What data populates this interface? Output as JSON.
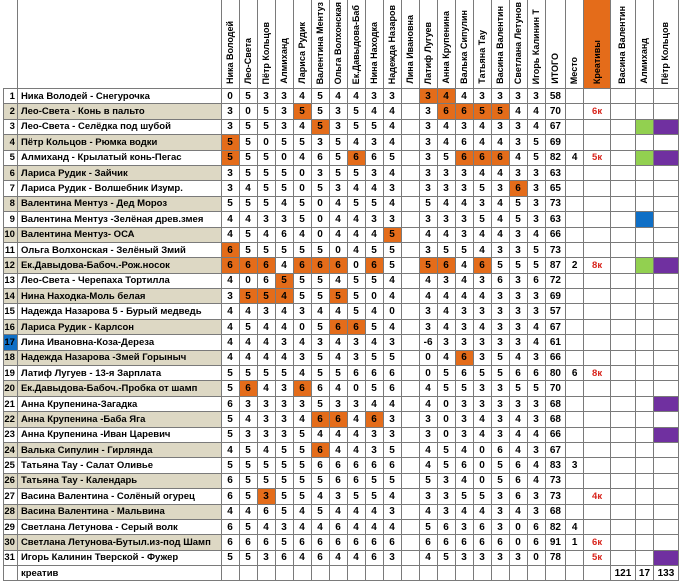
{
  "headers": {
    "judges": [
      "Ника Володей",
      "Лео-Света",
      "Пётр Кольцов",
      "Алмиханд",
      "Лариса Рудик",
      "Валентина Ментуз",
      "Ольга Волхонская",
      "Ек.Давыдова-Баб",
      "Нина Находка",
      "Надежда Назаров",
      "Лина Ивановна",
      "Латиф Лугуев",
      "Анна Крупенина",
      "Валька Сипулин",
      "Татьяна Тау",
      "Васина Валентин",
      "Светлана Летунов",
      "Игорь Калинин Т"
    ],
    "total": "ИТОГО",
    "place": "Место",
    "creative": "Креативы",
    "extra": [
      "Васина Валентин",
      "Алмиханд",
      "Пётр Кольцов"
    ]
  },
  "rows": [
    {
      "n": "1",
      "name": "Ника Володей - Снегурочка",
      "scores": [
        "0",
        "5",
        "3",
        "3",
        "4",
        "5",
        "4",
        "4",
        "3",
        "3",
        "",
        "3",
        "4",
        "4",
        "3",
        "3",
        "3",
        "3"
      ],
      "hl": [
        11,
        12
      ],
      "total": "58",
      "place": "",
      "note": "",
      "marks": [
        "",
        "",
        ""
      ],
      "beige": false
    },
    {
      "n": "2",
      "name": "Лео-Света - Конь в пальто",
      "scores": [
        "3",
        "0",
        "5",
        "3",
        "5",
        "5",
        "3",
        "5",
        "4",
        "4",
        "",
        "3",
        "6",
        "6",
        "5",
        "5",
        "4",
        "4"
      ],
      "hl": [
        4,
        12,
        13,
        14,
        15
      ],
      "total": "70",
      "place": "",
      "note": "6к",
      "marks": [
        "",
        "",
        ""
      ],
      "beige": true
    },
    {
      "n": "3",
      "name": "Лео-Света - Селёдка под шубой",
      "scores": [
        "3",
        "5",
        "5",
        "3",
        "4",
        "5",
        "3",
        "5",
        "5",
        "4",
        "",
        "3",
        "4",
        "3",
        "4",
        "3",
        "3",
        "4"
      ],
      "hl": [
        5
      ],
      "total": "67",
      "place": "",
      "note": "",
      "marks": [
        "",
        "green",
        "purple"
      ],
      "beige": false
    },
    {
      "n": "4",
      "name": "Пётр Кольцов - Рюмка водки",
      "scores": [
        "5",
        "5",
        "0",
        "5",
        "5",
        "3",
        "5",
        "4",
        "3",
        "4",
        "",
        "3",
        "4",
        "6",
        "4",
        "4",
        "3",
        "5"
      ],
      "hl": [
        0
      ],
      "total": "69",
      "place": "",
      "note": "",
      "marks": [
        "",
        "",
        ""
      ],
      "beige": true
    },
    {
      "n": "5",
      "name": "Алмиханд - Крылатый конь-Пегас",
      "scores": [
        "5",
        "5",
        "5",
        "0",
        "4",
        "6",
        "5",
        "6",
        "6",
        "5",
        "",
        "3",
        "5",
        "6",
        "6",
        "6",
        "4",
        "5"
      ],
      "hl": [
        0,
        7,
        13,
        14,
        15
      ],
      "total": "82",
      "place": "4",
      "note": "5к",
      "marks": [
        "",
        "green",
        "purple"
      ],
      "beige": false
    },
    {
      "n": "6",
      "name": "Лариса Рудик - Зайчик",
      "scores": [
        "3",
        "5",
        "5",
        "5",
        "0",
        "3",
        "5",
        "5",
        "3",
        "4",
        "",
        "3",
        "3",
        "3",
        "4",
        "4",
        "3",
        "3"
      ],
      "hl": [],
      "total": "63",
      "place": "",
      "note": "",
      "marks": [
        "",
        "",
        ""
      ],
      "beige": true
    },
    {
      "n": "7",
      "name": "Лариса Рудик - Волшебник Изумр.",
      "scores": [
        "3",
        "4",
        "5",
        "5",
        "0",
        "5",
        "3",
        "4",
        "4",
        "3",
        "",
        "3",
        "3",
        "3",
        "5",
        "3",
        "6",
        "3"
      ],
      "hl": [
        16
      ],
      "total": "65",
      "place": "",
      "note": "",
      "marks": [
        "",
        "",
        ""
      ],
      "beige": false
    },
    {
      "n": "8",
      "name": "Валентина Ментуз - Дед Мороз",
      "scores": [
        "5",
        "5",
        "5",
        "4",
        "5",
        "0",
        "4",
        "5",
        "5",
        "4",
        "",
        "5",
        "4",
        "4",
        "3",
        "4",
        "5",
        "3"
      ],
      "hl": [],
      "total": "73",
      "place": "",
      "note": "",
      "marks": [
        "",
        "",
        ""
      ],
      "beige": true
    },
    {
      "n": "9",
      "name": "Валентина Ментуз -Зелёная древ.змея",
      "scores": [
        "4",
        "4",
        "3",
        "3",
        "5",
        "0",
        "4",
        "4",
        "3",
        "3",
        "",
        "3",
        "3",
        "3",
        "5",
        "4",
        "5",
        "3"
      ],
      "hl": [],
      "total": "63",
      "place": "",
      "note": "",
      "marks": [
        "",
        "blue",
        ""
      ],
      "beige": false
    },
    {
      "n": "10",
      "name": "Валентина Ментуз- ОСА",
      "scores": [
        "4",
        "5",
        "4",
        "6",
        "4",
        "0",
        "4",
        "4",
        "4",
        "5",
        "",
        "4",
        "4",
        "3",
        "4",
        "4",
        "3",
        "4"
      ],
      "hl": [
        9
      ],
      "total": "66",
      "place": "",
      "note": "",
      "marks": [
        "",
        "",
        ""
      ],
      "beige": true
    },
    {
      "n": "11",
      "name": "Ольга Волхонская - Зелёный Змий",
      "scores": [
        "6",
        "5",
        "5",
        "5",
        "5",
        "5",
        "0",
        "4",
        "5",
        "5",
        "",
        "3",
        "5",
        "5",
        "4",
        "3",
        "3",
        "5"
      ],
      "hl": [
        0
      ],
      "total": "73",
      "place": "",
      "note": "",
      "marks": [
        "",
        "",
        ""
      ],
      "beige": false
    },
    {
      "n": "12",
      "name": "Ек.Давыдова-Бабоч.-Рож.носок",
      "scores": [
        "6",
        "6",
        "6",
        "4",
        "6",
        "6",
        "6",
        "0",
        "6",
        "5",
        "",
        "5",
        "6",
        "4",
        "6",
        "5",
        "5",
        "5"
      ],
      "hl": [
        0,
        1,
        2,
        4,
        5,
        6,
        8,
        11,
        12,
        14
      ],
      "total": "87",
      "place": "2",
      "note": "8к",
      "marks": [
        "",
        "green",
        "purple"
      ],
      "beige": true
    },
    {
      "n": "13",
      "name": "Лео-Света - Черепаха Тортилла",
      "scores": [
        "4",
        "0",
        "6",
        "5",
        "5",
        "5",
        "4",
        "5",
        "5",
        "4",
        "",
        "4",
        "3",
        "4",
        "3",
        "6",
        "3",
        "6"
      ],
      "hl": [
        3
      ],
      "total": "72",
      "place": "",
      "note": "",
      "marks": [
        "",
        "",
        ""
      ],
      "beige": false
    },
    {
      "n": "14",
      "name": "Нина Находка-Моль белая",
      "scores": [
        "3",
        "5",
        "5",
        "4",
        "5",
        "5",
        "5",
        "5",
        "0",
        "4",
        "",
        "4",
        "4",
        "4",
        "4",
        "3",
        "3",
        "3"
      ],
      "hl": [
        1,
        2,
        3,
        6
      ],
      "total": "69",
      "place": "",
      "note": "",
      "marks": [
        "",
        "",
        ""
      ],
      "beige": true
    },
    {
      "n": "15",
      "name": "Надежда Назарова 5 - Бурый медведь",
      "scores": [
        "4",
        "4",
        "3",
        "4",
        "3",
        "4",
        "4",
        "5",
        "4",
        "0",
        "",
        "3",
        "4",
        "3",
        "3",
        "3",
        "3",
        "3"
      ],
      "hl": [],
      "total": "57",
      "place": "",
      "note": "",
      "marks": [
        "",
        "",
        ""
      ],
      "beige": false
    },
    {
      "n": "16",
      "name": "Лариса Рудик - Карлсон",
      "scores": [
        "4",
        "5",
        "4",
        "4",
        "0",
        "5",
        "6",
        "6",
        "5",
        "4",
        "",
        "3",
        "4",
        "3",
        "4",
        "3",
        "3",
        "4"
      ],
      "hl": [
        6,
        7
      ],
      "total": "67",
      "place": "",
      "note": "",
      "marks": [
        "",
        "",
        ""
      ],
      "beige": true
    },
    {
      "n": "17",
      "name": "Лина Ивановна-Коза-Дереза",
      "scores": [
        "4",
        "4",
        "4",
        "3",
        "4",
        "3",
        "4",
        "3",
        "4",
        "3",
        "",
        "-6",
        "3",
        "3",
        "3",
        "3",
        "3",
        "4"
      ],
      "hl": [],
      "total": "61",
      "place": "",
      "note": "",
      "marks": [
        "",
        "",
        ""
      ],
      "beige": false,
      "blue_num": true
    },
    {
      "n": "18",
      "name": "Надежда Назарова -Змей Горыныч",
      "scores": [
        "4",
        "4",
        "4",
        "4",
        "3",
        "5",
        "4",
        "3",
        "5",
        "5",
        "",
        "0",
        "4",
        "6",
        "3",
        "5",
        "4",
        "3"
      ],
      "hl": [
        13
      ],
      "total": "66",
      "place": "",
      "note": "",
      "marks": [
        "",
        "",
        ""
      ],
      "beige": true
    },
    {
      "n": "19",
      "name": "Латиф Лугуев - 13-я Зарплата",
      "scores": [
        "5",
        "5",
        "5",
        "5",
        "4",
        "5",
        "5",
        "6",
        "6",
        "6",
        "",
        "0",
        "5",
        "6",
        "5",
        "5",
        "6",
        "6"
      ],
      "hl": [],
      "total": "80",
      "place": "6",
      "note": "8к",
      "marks": [
        "",
        "",
        ""
      ],
      "beige": false
    },
    {
      "n": "20",
      "name": "Ек.Давыдова-Бабоч.-Пробка от шамп",
      "scores": [
        "5",
        "6",
        "4",
        "3",
        "6",
        "6",
        "4",
        "0",
        "5",
        "6",
        "",
        "4",
        "5",
        "5",
        "3",
        "3",
        "5",
        "5"
      ],
      "hl": [
        1,
        4
      ],
      "total": "70",
      "place": "",
      "note": "",
      "marks": [
        "",
        "",
        ""
      ],
      "beige": true
    },
    {
      "n": "21",
      "name": "Анна Крупенина-Загадка",
      "scores": [
        "6",
        "3",
        "3",
        "3",
        "3",
        "5",
        "3",
        "3",
        "4",
        "4",
        "",
        "4",
        "0",
        "3",
        "3",
        "3",
        "3",
        "3"
      ],
      "hl": [],
      "total": "68",
      "place": "",
      "note": "",
      "marks": [
        "",
        "",
        "purple"
      ],
      "beige": false
    },
    {
      "n": "22",
      "name": "Анна Крупенина -Баба Яга",
      "scores": [
        "5",
        "4",
        "3",
        "3",
        "4",
        "6",
        "6",
        "4",
        "6",
        "3",
        "",
        "3",
        "0",
        "3",
        "4",
        "3",
        "4",
        "3"
      ],
      "hl": [
        5,
        6,
        8
      ],
      "total": "68",
      "place": "",
      "note": "",
      "marks": [
        "",
        "",
        ""
      ],
      "beige": true
    },
    {
      "n": "23",
      "name": "Анна Крупенина -Иван Царевич",
      "scores": [
        "5",
        "3",
        "3",
        "3",
        "5",
        "4",
        "4",
        "4",
        "3",
        "3",
        "",
        "3",
        "0",
        "3",
        "4",
        "3",
        "4",
        "4"
      ],
      "hl": [],
      "total": "66",
      "place": "",
      "note": "",
      "marks": [
        "",
        "",
        "purple"
      ],
      "beige": false
    },
    {
      "n": "24",
      "name": "Валька Сипулин - Гирлянда",
      "scores": [
        "4",
        "5",
        "4",
        "5",
        "5",
        "6",
        "4",
        "4",
        "3",
        "5",
        "",
        "4",
        "5",
        "4",
        "0",
        "6",
        "4",
        "3"
      ],
      "hl": [
        5
      ],
      "total": "67",
      "place": "",
      "note": "",
      "marks": [
        "",
        "",
        ""
      ],
      "beige": true
    },
    {
      "n": "25",
      "name": "Татьяна Тау - Салат Оливье",
      "scores": [
        "5",
        "5",
        "5",
        "5",
        "5",
        "6",
        "6",
        "6",
        "6",
        "6",
        "",
        "4",
        "5",
        "6",
        "0",
        "5",
        "6",
        "4"
      ],
      "hl": [],
      "total": "83",
      "place": "3",
      "note": "",
      "marks": [
        "",
        "",
        ""
      ],
      "beige": false
    },
    {
      "n": "26",
      "name": "Татьяна Тау - Календарь",
      "scores": [
        "6",
        "5",
        "5",
        "5",
        "5",
        "5",
        "6",
        "6",
        "5",
        "5",
        "",
        "5",
        "3",
        "4",
        "0",
        "5",
        "6",
        "4"
      ],
      "hl": [],
      "total": "73",
      "place": "",
      "note": "",
      "marks": [
        "",
        "",
        ""
      ],
      "beige": true
    },
    {
      "n": "27",
      "name": "Васина Валентина - Солёный огурец",
      "scores": [
        "6",
        "5",
        "3",
        "5",
        "5",
        "4",
        "3",
        "5",
        "5",
        "4",
        "",
        "3",
        "3",
        "5",
        "5",
        "3",
        "6",
        "3"
      ],
      "hl": [
        2
      ],
      "total": "73",
      "place": "",
      "note": "4к",
      "marks": [
        "",
        "",
        ""
      ],
      "beige": false
    },
    {
      "n": "28",
      "name": "Васина Валентина - Мальвина",
      "scores": [
        "4",
        "4",
        "6",
        "5",
        "4",
        "5",
        "4",
        "4",
        "4",
        "3",
        "",
        "4",
        "3",
        "4",
        "4",
        "3",
        "4",
        "3"
      ],
      "hl": [],
      "total": "68",
      "place": "",
      "note": "",
      "marks": [
        "",
        "",
        ""
      ],
      "beige": true
    },
    {
      "n": "29",
      "name": "Светлана Летунова - Серый волк",
      "scores": [
        "6",
        "5",
        "4",
        "3",
        "4",
        "4",
        "6",
        "4",
        "4",
        "4",
        "",
        "5",
        "6",
        "3",
        "6",
        "3",
        "0",
        "6"
      ],
      "hl": [],
      "total": "82",
      "place": "4",
      "note": "",
      "marks": [
        "",
        "",
        ""
      ],
      "beige": false
    },
    {
      "n": "30",
      "name": "Светлана Летунова-Бутыл.из-под Шамп",
      "scores": [
        "6",
        "6",
        "6",
        "5",
        "6",
        "6",
        "6",
        "6",
        "6",
        "6",
        "",
        "6",
        "6",
        "6",
        "6",
        "6",
        "0",
        "6"
      ],
      "hl": [],
      "total": "91",
      "place": "1",
      "note": "6к",
      "marks": [
        "",
        "",
        ""
      ],
      "beige": true
    },
    {
      "n": "31",
      "name": "Игорь Калинин Тверской - Фужер",
      "scores": [
        "5",
        "5",
        "3",
        "6",
        "4",
        "6",
        "4",
        "4",
        "6",
        "3",
        "",
        "4",
        "5",
        "3",
        "3",
        "3",
        "3",
        "0"
      ],
      "hl": [],
      "total": "78",
      "place": "",
      "note": "5к",
      "marks": [
        "",
        "",
        "purple"
      ],
      "beige": false
    }
  ],
  "footer": {
    "label": "креатив",
    "extra": [
      "121",
      "17",
      "133"
    ]
  }
}
